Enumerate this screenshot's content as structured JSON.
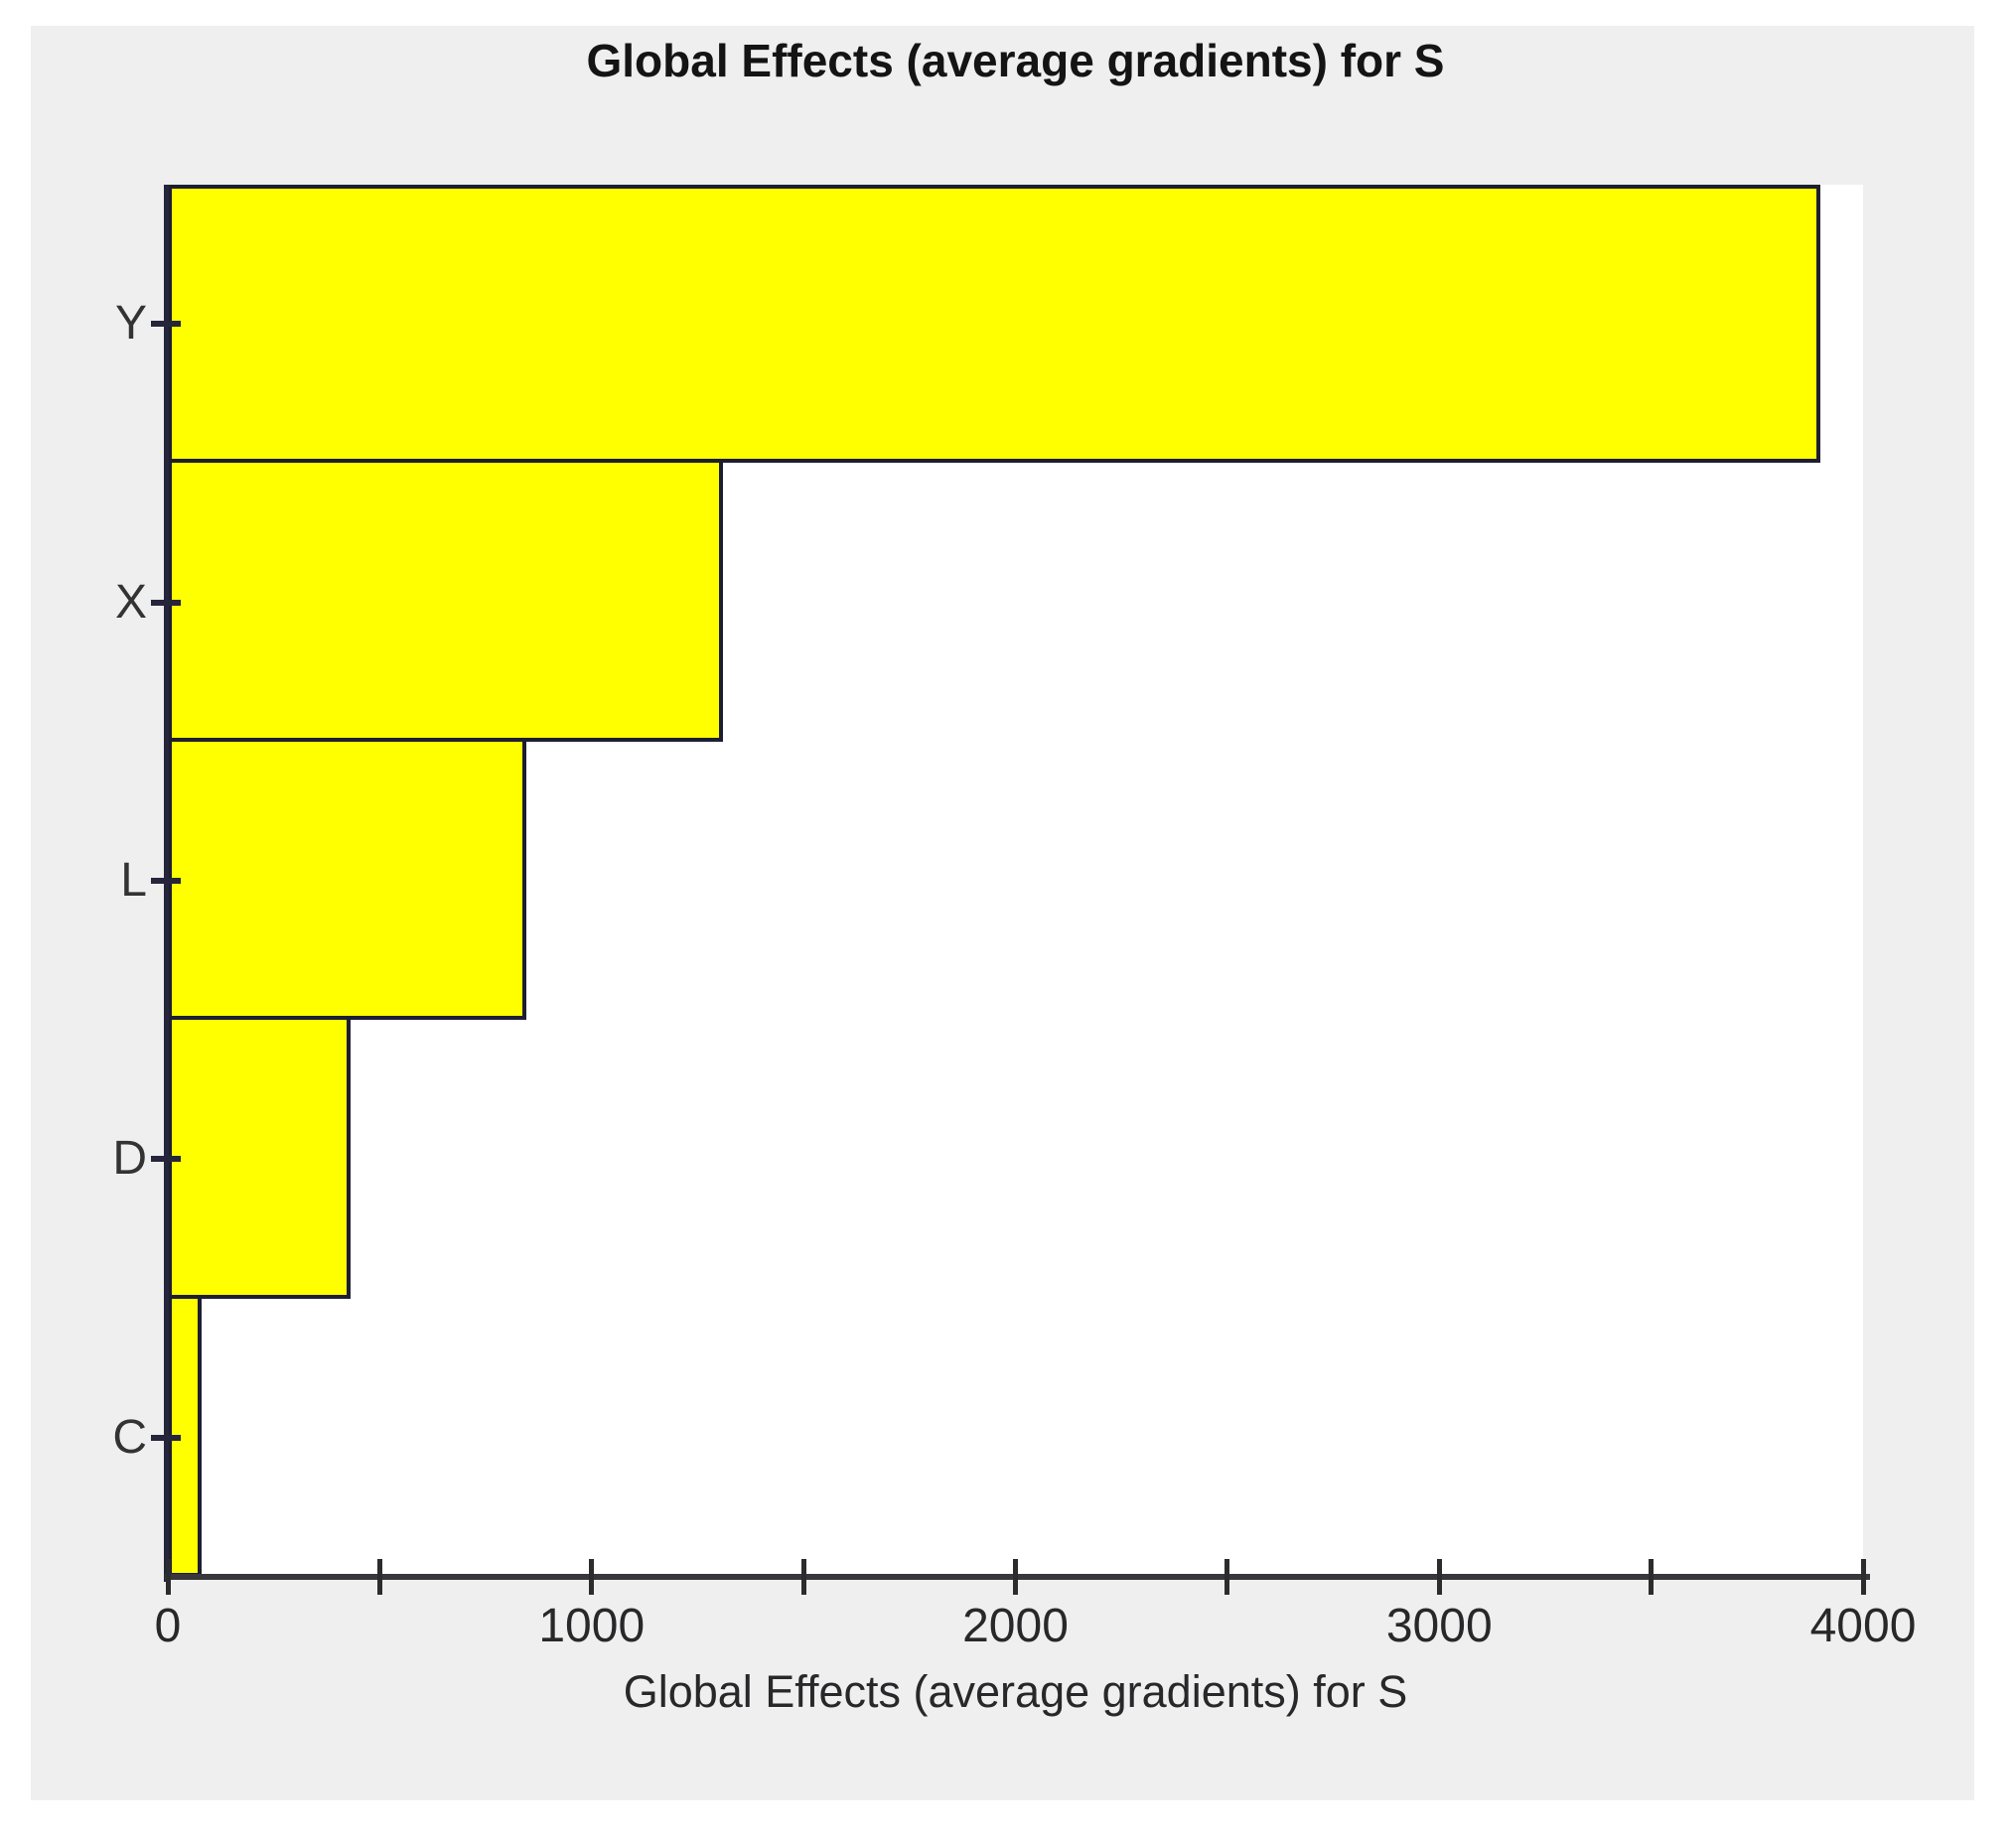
{
  "title": "Global Effects (average gradients) for S",
  "chart_data": {
    "type": "bar",
    "orientation": "horizontal",
    "title": "Global Effects (average gradients) for S",
    "xlabel": "Global Effects (average gradients) for S",
    "ylabel": "",
    "categories": [
      "Y",
      "X",
      "L",
      "D",
      "C"
    ],
    "values": [
      3900,
      1310,
      845,
      430,
      80
    ],
    "xlim": [
      0,
      4000
    ],
    "x_major_ticks": [
      0,
      1000,
      2000,
      3000,
      4000
    ],
    "x_minor_ticks": [
      500,
      1500,
      2500,
      3500
    ],
    "grid": false,
    "legend": null,
    "bar_color": "#ffff00",
    "bar_border_color": "#1e1e32",
    "panel_color": "#efefef",
    "plot_background": "#ffffff",
    "axis_color": "#38383c",
    "text_color": "#28282a"
  }
}
